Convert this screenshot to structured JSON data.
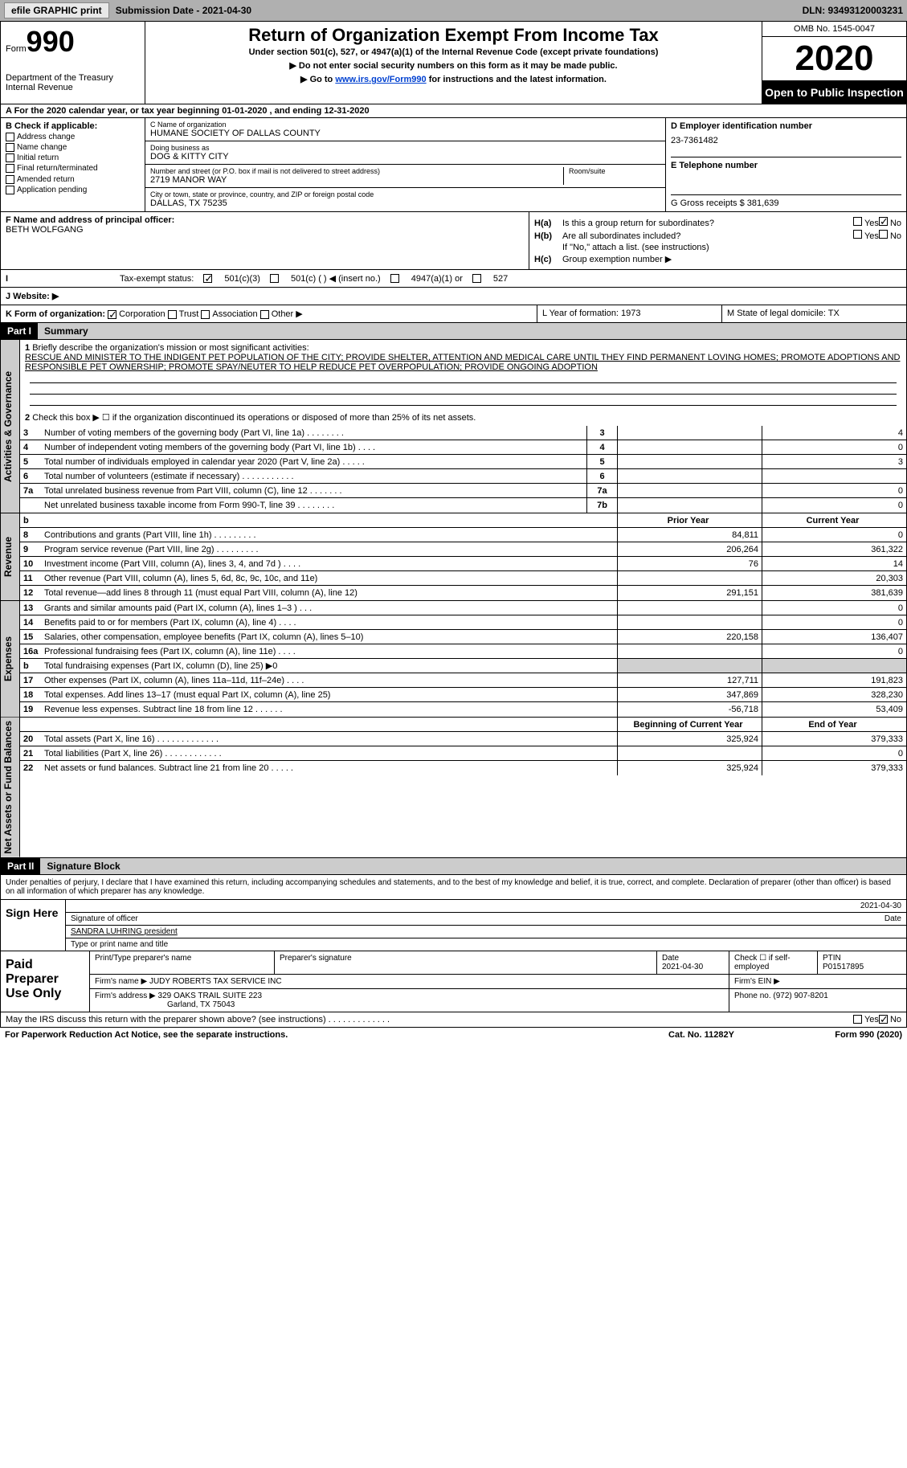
{
  "toolbar": {
    "efile_label": "efile GRAPHIC print",
    "submission_label": "Submission Date - 2021-04-30",
    "dln_label": "DLN: 93493120003231"
  },
  "header": {
    "form_prefix": "Form",
    "form_number": "990",
    "dept1": "Department of the Treasury",
    "dept2": "Internal Revenue",
    "title": "Return of Organization Exempt From Income Tax",
    "subtitle1": "Under section 501(c), 527, or 4947(a)(1) of the Internal Revenue Code (except private foundations)",
    "subtitle2": "▶ Do not enter social security numbers on this form as it may be made public.",
    "subtitle3_pre": "▶ Go to ",
    "subtitle3_link": "www.irs.gov/Form990",
    "subtitle3_post": " for instructions and the latest information.",
    "omb": "OMB No. 1545-0047",
    "year": "2020",
    "inspection": "Open to Public Inspection"
  },
  "year_line": "A For the 2020 calendar year, or tax year beginning 01-01-2020   , and ending 12-31-2020",
  "section_b": {
    "label": "B Check if applicable:",
    "items": [
      "Address change",
      "Name change",
      "Initial return",
      "Final return/terminated",
      "Amended return",
      "Application pending"
    ]
  },
  "section_c": {
    "name_lbl": "C Name of organization",
    "name_val": "HUMANE SOCIETY OF DALLAS COUNTY",
    "dba_lbl": "Doing business as",
    "dba_val": "DOG & KITTY CITY",
    "addr_lbl": "Number and street (or P.O. box if mail is not delivered to street address)",
    "addr_val": "2719 MANOR WAY",
    "room_lbl": "Room/suite",
    "city_lbl": "City or town, state or province, country, and ZIP or foreign postal code",
    "city_val": "DALLAS, TX  75235"
  },
  "section_d": {
    "ein_lbl": "D Employer identification number",
    "ein_val": "23-7361482",
    "phone_lbl": "E Telephone number",
    "gross_lbl": "G Gross receipts $ 381,639"
  },
  "section_f": {
    "lbl": "F  Name and address of principal officer:",
    "val": "BETH WOLFGANG"
  },
  "section_h": {
    "ha_lbl": "Is this a group return for subordinates?",
    "hb_lbl": "Are all subordinates included?",
    "note": "If \"No,\" attach a list. (see instructions)",
    "hc_lbl": "Group exemption number ▶",
    "yes": "Yes",
    "no": "No"
  },
  "tax_status": {
    "lbl": "Tax-exempt status:",
    "opt1": "501(c)(3)",
    "opt2": "501(c) (  ) ◀ (insert no.)",
    "opt3": "4947(a)(1) or",
    "opt4": "527"
  },
  "website_lbl": "J    Website: ▶",
  "section_k": {
    "lbl": "K Form of organization:",
    "opts": [
      "Corporation",
      "Trust",
      "Association",
      "Other ▶"
    ]
  },
  "section_l": "L Year of formation: 1973",
  "section_m": "M State of legal domicile: TX",
  "part1": {
    "hdr": "Part I",
    "title": "Summary",
    "q1_lbl": "Briefly describe the organization's mission or most significant activities:",
    "q1_val": "RESCUE AND MINISTER TO THE INDIGENT PET POPULATION OF THE CITY; PROVIDE SHELTER, ATTENTION AND MEDICAL CARE UNTIL THEY FIND PERMANENT LOVING HOMES; PROMOTE ADOPTIONS AND RESPONSIBLE PET OWNERSHIP; PROMOTE SPAY/NEUTER TO HELP REDUCE PET OVERPOPULATION; PROVIDE ONGOING ADOPTION",
    "q2": "Check this box ▶ ☐  if the organization discontinued its operations or disposed of more than 25% of its net assets.",
    "vtab_gov": "Activities & Governance",
    "vtab_rev": "Revenue",
    "vtab_exp": "Expenses",
    "vtab_net": "Net Assets or Fund Balances",
    "prior_hdr": "Prior Year",
    "current_hdr": "Current Year",
    "begin_hdr": "Beginning of Current Year",
    "end_hdr": "End of Year",
    "rows_gov": [
      {
        "n": "3",
        "d": "Number of voting members of the governing body (Part VI, line 1a)  .  .  .  .  .  .  .  .",
        "c1": "3",
        "c2": "",
        "c3": "4"
      },
      {
        "n": "4",
        "d": "Number of independent voting members of the governing body (Part VI, line 1b)  .  .  .  .",
        "c1": "4",
        "c2": "",
        "c3": "0"
      },
      {
        "n": "5",
        "d": "Total number of individuals employed in calendar year 2020 (Part V, line 2a)  .  .  .  .  .",
        "c1": "5",
        "c2": "",
        "c3": "3"
      },
      {
        "n": "6",
        "d": "Total number of volunteers (estimate if necessary)   .  .  .  .  .  .  .  .  .  .  .",
        "c1": "6",
        "c2": "",
        "c3": ""
      },
      {
        "n": "7a",
        "d": "Total unrelated business revenue from Part VIII, column (C), line 12   .  .  .  .  .  .  .",
        "c1": "7a",
        "c2": "",
        "c3": "0"
      },
      {
        "n": "",
        "d": "Net unrelated business taxable income from Form 990-T, line 39  .  .  .  .  .  .  .  .",
        "c1": "7b",
        "c2": "",
        "c3": "0"
      }
    ],
    "rows_rev": [
      {
        "n": "8",
        "d": "Contributions and grants (Part VIII, line 1h)   .  .  .  .  .  .  .  .  .",
        "c2": "84,811",
        "c3": "0"
      },
      {
        "n": "9",
        "d": "Program service revenue (Part VIII, line 2g)   .  .  .  .  .  .  .  .  .",
        "c2": "206,264",
        "c3": "361,322"
      },
      {
        "n": "10",
        "d": "Investment income (Part VIII, column (A), lines 3, 4, and 7d )   .  .  .  .",
        "c2": "76",
        "c3": "14"
      },
      {
        "n": "11",
        "d": "Other revenue (Part VIII, column (A), lines 5, 6d, 8c, 9c, 10c, and 11e)",
        "c2": "",
        "c3": "20,303"
      },
      {
        "n": "12",
        "d": "Total revenue—add lines 8 through 11 (must equal Part VIII, column (A), line 12)",
        "c2": "291,151",
        "c3": "381,639"
      }
    ],
    "rows_exp": [
      {
        "n": "13",
        "d": "Grants and similar amounts paid (Part IX, column (A), lines 1–3 ) .  .  .",
        "c2": "",
        "c3": "0"
      },
      {
        "n": "14",
        "d": "Benefits paid to or for members (Part IX, column (A), line 4)  .  .  .  .",
        "c2": "",
        "c3": "0"
      },
      {
        "n": "15",
        "d": "Salaries, other compensation, employee benefits (Part IX, column (A), lines 5–10)",
        "c2": "220,158",
        "c3": "136,407"
      },
      {
        "n": "16a",
        "d": "Professional fundraising fees (Part IX, column (A), line 11e)  .  .  .  .",
        "c2": "",
        "c3": "0"
      },
      {
        "n": "b",
        "d": "Total fundraising expenses (Part IX, column (D), line 25) ▶0",
        "c2": "",
        "c3": "",
        "shade": true
      },
      {
        "n": "17",
        "d": "Other expenses (Part IX, column (A), lines 11a–11d, 11f–24e)  .  .  .  .",
        "c2": "127,711",
        "c3": "191,823"
      },
      {
        "n": "18",
        "d": "Total expenses. Add lines 13–17 (must equal Part IX, column (A), line 25)",
        "c2": "347,869",
        "c3": "328,230"
      },
      {
        "n": "19",
        "d": "Revenue less expenses. Subtract line 18 from line 12  .  .  .  .  .  .",
        "c2": "-56,718",
        "c3": "53,409"
      }
    ],
    "rows_net": [
      {
        "n": "20",
        "d": "Total assets (Part X, line 16)  .  .  .  .  .  .  .  .  .  .  .  .  .",
        "c2": "325,924",
        "c3": "379,333"
      },
      {
        "n": "21",
        "d": "Total liabilities (Part X, line 26)  .  .  .  .  .  .  .  .  .  .  .  .",
        "c2": "",
        "c3": "0"
      },
      {
        "n": "22",
        "d": "Net assets or fund balances. Subtract line 21 from line 20  .  .  .  .  .",
        "c2": "325,924",
        "c3": "379,333"
      }
    ]
  },
  "part2": {
    "hdr": "Part II",
    "title": "Signature Block",
    "declaration": "Under penalties of perjury, I declare that I have examined this return, including accompanying schedules and statements, and to the best of my knowledge and belief, it is true, correct, and complete. Declaration of preparer (other than officer) is based on all information of which preparer has any knowledge.",
    "sign_here": "Sign Here",
    "sig_officer_lbl": "Signature of officer",
    "sig_date": "2021-04-30",
    "date_lbl": "Date",
    "officer_name": "SANDRA LUHRING president",
    "officer_name_lbl": "Type or print name and title",
    "paid_prep": "Paid Preparer Use Only",
    "prep_name_lbl": "Print/Type preparer's name",
    "prep_sig_lbl": "Preparer's signature",
    "prep_date_lbl": "Date",
    "prep_date": "2021-04-30",
    "prep_self_lbl": "Check ☐ if self-employed",
    "ptin_lbl": "PTIN",
    "ptin_val": "P01517895",
    "firm_name_lbl": "Firm's name    ▶",
    "firm_name": "JUDY ROBERTS TAX SERVICE INC",
    "firm_ein_lbl": "Firm's EIN ▶",
    "firm_addr_lbl": "Firm's address ▶",
    "firm_addr1": "329 OAKS TRAIL SUITE 223",
    "firm_addr2": "Garland, TX  75043",
    "firm_phone_lbl": "Phone no. (972) 907-8201"
  },
  "footer": {
    "discuss": "May the IRS discuss this return with the preparer shown above? (see instructions)   .  .  .  .  .  .  .  .  .  .  .  .  .",
    "yes": "Yes",
    "no": "No",
    "pra": "For Paperwork Reduction Act Notice, see the separate instructions.",
    "cat": "Cat. No. 11282Y",
    "form": "Form 990 (2020)"
  }
}
